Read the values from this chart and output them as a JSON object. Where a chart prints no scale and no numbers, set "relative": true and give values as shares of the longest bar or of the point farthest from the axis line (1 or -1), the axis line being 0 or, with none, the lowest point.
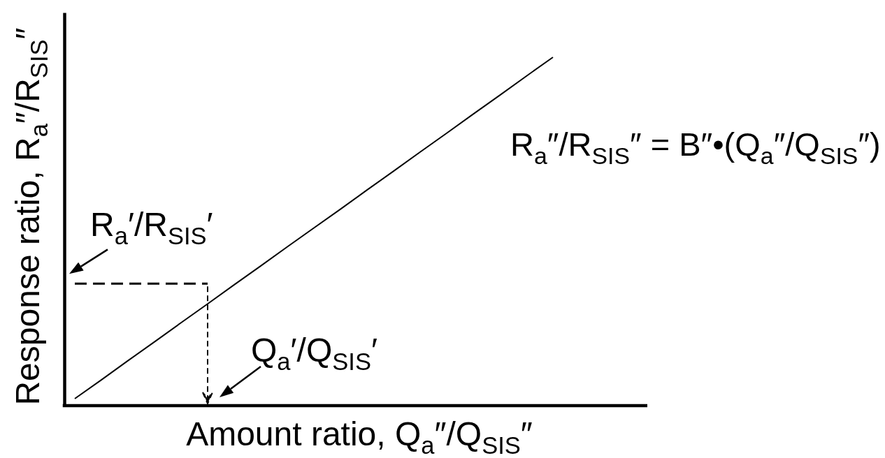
{
  "chart_data": {
    "type": "line",
    "xlabel": "Amount ratio, Q$_{a}$″/Q$_{SIS}$″",
    "ylabel": "Response ratio, R$_{a}$″/R$_{SIS}$″",
    "categories": [
      null,
      null,
      null,
      null,
      null,
      null,
      null,
      null,
      null,
      null,
      null,
      null,
      null,
      null,
      null,
      null,
      null,
      null,
      null
    ],
    "relative": true,
    "line_style": "solid",
    "series": [
      {
        "color": "#000000",
        "values": [
          0.02,
          0.074,
          0.129,
          0.183,
          0.238,
          0.292,
          0.347,
          0.401,
          0.456,
          0.51,
          0.564,
          0.619,
          0.673,
          0.728,
          0.782,
          0.837,
          0.891,
          0.946,
          1
        ]
      },
      {
        "color": "#000000",
        "line_style": "dashed",
        "values": [
          0.35,
          0.35,
          0.35,
          0.35,
          0.35,
          0.35,
          null,
          null,
          null,
          null,
          null,
          null,
          null,
          null,
          null,
          null,
          null,
          null,
          null
        ]
      }
    ],
    "annotations": [
      "R$_{a}$″/R$_{SIS}$″ = B″•(Q$_{a}$″/Q$_{SIS}$″)",
      "R$_{a}$′/R$_{SIS}$′",
      "Q$_{a}$′/Q$_{SIS}$′"
    ]
  }
}
